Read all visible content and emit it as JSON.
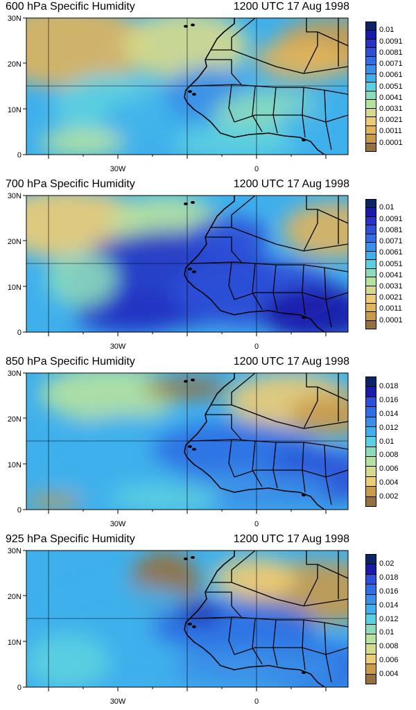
{
  "panels": [
    {
      "title": "600 hPa Specific Humidity",
      "time": "1200 UTC 17 Aug 1998",
      "legend_labels": [
        "0.01",
        "0.0091",
        "0.0081",
        "0.0071",
        "0.0061",
        "0.0051",
        "0.0041",
        "0.0031",
        "0.0021",
        "0.0011",
        "0.0001"
      ],
      "legend_colors": [
        "#0b2468",
        "#1a1aa8",
        "#2434c4",
        "#2c50d8",
        "#2f6ee4",
        "#3a8fe8",
        "#3fb0ec",
        "#5cd0e0",
        "#8cdcbc",
        "#b6e2a0",
        "#d6da8c",
        "#eecc74",
        "#e0b45c",
        "#c89a4c",
        "#96703e"
      ],
      "yticks": [
        "30N",
        "20N",
        "10N",
        "0"
      ],
      "xticks": [
        "30W",
        "0"
      ]
    },
    {
      "title": "700 hPa Specific Humidity",
      "time": "1200 UTC 17 Aug 1998",
      "legend_labels": [
        "0.01",
        "0.0091",
        "0.0081",
        "0.0071",
        "0.0061",
        "0.0051",
        "0.0041",
        "0.0031",
        "0.0021",
        "0.0011",
        "0.0001"
      ],
      "legend_colors": [
        "#0b2468",
        "#1a1aa8",
        "#2434c4",
        "#2c50d8",
        "#2f6ee4",
        "#3a8fe8",
        "#3fb0ec",
        "#5cd0e0",
        "#8cdcbc",
        "#b6e2a0",
        "#d6da8c",
        "#eecc74",
        "#e0b45c",
        "#c89a4c",
        "#96703e"
      ],
      "yticks": [
        "30N",
        "20N",
        "10N",
        "0"
      ],
      "xticks": [
        "30W",
        "0"
      ]
    },
    {
      "title": "850 hPa Specific Humidity",
      "time": "1200 UTC 17 Aug 1998",
      "legend_labels": [
        "0.018",
        "0.016",
        "0.014",
        "0.012",
        "0.01",
        "0.008",
        "0.006",
        "0.004",
        "0.002"
      ],
      "legend_colors": [
        "#0b2468",
        "#1a1aa8",
        "#2c50d8",
        "#2f6ee4",
        "#3a8fe8",
        "#3fb0ec",
        "#5cd0e0",
        "#8cdcbc",
        "#b6e2a0",
        "#d6da8c",
        "#eecc74",
        "#c89a4c",
        "#96703e"
      ],
      "yticks": [
        "30N",
        "20N",
        "10N",
        "0"
      ],
      "xticks": [
        "30W",
        "0"
      ]
    },
    {
      "title": "925 hPa Specific Humidity",
      "time": "1200 UTC 17 Aug 1998",
      "legend_labels": [
        "0.02",
        "0.018",
        "0.016",
        "0.014",
        "0.012",
        "0.01",
        "0.008",
        "0.006",
        "0.004"
      ],
      "legend_colors": [
        "#0b2468",
        "#1a1aa8",
        "#2c50d8",
        "#2f6ee4",
        "#3a8fe8",
        "#3fb0ec",
        "#5cd0e0",
        "#8cdcbc",
        "#b6e2a0",
        "#d6da8c",
        "#eecc74",
        "#c89a4c",
        "#96703e"
      ],
      "yticks": [
        "30N",
        "20N",
        "10N",
        "0"
      ],
      "xticks": [
        "30W",
        "0"
      ]
    }
  ]
}
